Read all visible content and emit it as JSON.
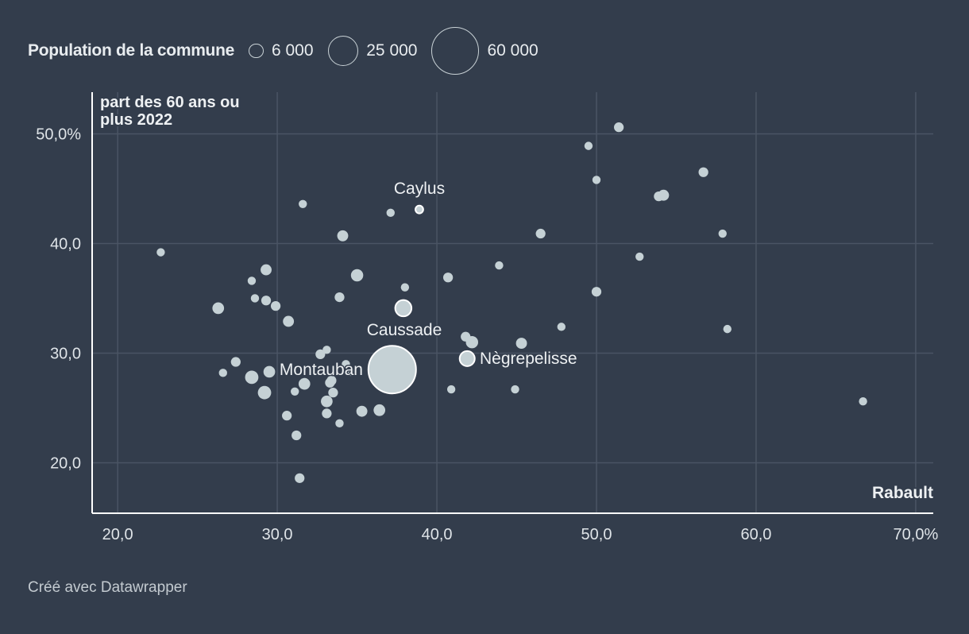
{
  "legend": {
    "title": "Population de la commune",
    "items": [
      {
        "label": "6 000",
        "value": 6000
      },
      {
        "label": "25 000",
        "value": 25000
      },
      {
        "label": "60 000",
        "value": 60000
      }
    ]
  },
  "chart_data": {
    "type": "scatter",
    "ylabel": "part des 60 ans ou plus 2022",
    "xlabel": "",
    "xlim": [
      18.4,
      71.1
    ],
    "ylim": [
      15.4,
      53.8
    ],
    "xticks": [
      {
        "v": 20,
        "label": "20,0"
      },
      {
        "v": 30,
        "label": "30,0"
      },
      {
        "v": 40,
        "label": "40,0"
      },
      {
        "v": 50,
        "label": "50,0"
      },
      {
        "v": 60,
        "label": "60,0"
      },
      {
        "v": 70,
        "label": "70,0%"
      }
    ],
    "yticks": [
      {
        "v": 20,
        "label": "20,0"
      },
      {
        "v": 30,
        "label": "30,0"
      },
      {
        "v": 40,
        "label": "40,0"
      },
      {
        "v": 50,
        "label": "50,0%"
      }
    ],
    "grid": true,
    "size_encoding": "population",
    "point_color": "#c5d1d5",
    "annotation": "Rabault",
    "labeled_points": [
      {
        "name": "Caylus",
        "x": 38.9,
        "y": 43.1,
        "pop": 1600
      },
      {
        "name": "Caussade",
        "x": 37.9,
        "y": 34.1,
        "pop": 7000
      },
      {
        "name": "Montauban",
        "x": 37.2,
        "y": 28.5,
        "pop": 60000
      },
      {
        "name": "Nègrepelisse",
        "x": 41.9,
        "y": 29.5,
        "pop": 6000
      }
    ],
    "points": [
      [
        22.7,
        39.2,
        1800
      ],
      [
        26.3,
        34.1,
        3600
      ],
      [
        26.6,
        28.2,
        1800
      ],
      [
        27.4,
        29.2,
        2500
      ],
      [
        28.4,
        27.8,
        4700
      ],
      [
        28.4,
        36.6,
        1800
      ],
      [
        28.6,
        35.0,
        1800
      ],
      [
        29.3,
        37.6,
        3200
      ],
      [
        29.3,
        34.8,
        2500
      ],
      [
        29.5,
        28.3,
        3600
      ],
      [
        29.9,
        34.3,
        2500
      ],
      [
        29.2,
        26.4,
        4700
      ],
      [
        30.7,
        32.9,
        3200
      ],
      [
        30.6,
        24.3,
        2500
      ],
      [
        31.1,
        26.5,
        1800
      ],
      [
        31.2,
        22.5,
        2500
      ],
      [
        31.4,
        18.6,
        2500
      ],
      [
        31.7,
        27.2,
        3600
      ],
      [
        31.6,
        43.6,
        1800
      ],
      [
        32.7,
        29.9,
        2500
      ],
      [
        33.1,
        30.3,
        1800
      ],
      [
        33.1,
        24.5,
        2500
      ],
      [
        33.1,
        25.6,
        3600
      ],
      [
        33.4,
        27.5,
        2500
      ],
      [
        33.3,
        27.3,
        2500
      ],
      [
        33.5,
        26.4,
        2500
      ],
      [
        33.9,
        23.6,
        1800
      ],
      [
        33.9,
        35.1,
        2500
      ],
      [
        34.1,
        40.7,
        3200
      ],
      [
        34.3,
        29.0,
        1800
      ],
      [
        34.6,
        28.3,
        1800
      ],
      [
        35.0,
        37.1,
        4000
      ],
      [
        35.3,
        24.7,
        3200
      ],
      [
        36.4,
        24.8,
        3600
      ],
      [
        37.1,
        42.8,
        1800
      ],
      [
        38.0,
        36.0,
        1800
      ],
      [
        40.7,
        36.9,
        2500
      ],
      [
        40.9,
        26.7,
        1800
      ],
      [
        41.8,
        31.5,
        2500
      ],
      [
        42.2,
        31.0,
        4000
      ],
      [
        43.9,
        38.0,
        1800
      ],
      [
        44.9,
        26.7,
        1800
      ],
      [
        45.3,
        30.9,
        3200
      ],
      [
        46.5,
        40.9,
        2500
      ],
      [
        47.8,
        32.4,
        1800
      ],
      [
        49.5,
        48.9,
        1800
      ],
      [
        50.0,
        45.8,
        1800
      ],
      [
        50.0,
        35.6,
        2500
      ],
      [
        51.4,
        50.6,
        2500
      ],
      [
        52.7,
        38.8,
        1800
      ],
      [
        53.9,
        44.3,
        2500
      ],
      [
        54.2,
        44.4,
        3200
      ],
      [
        56.7,
        46.5,
        2500
      ],
      [
        57.9,
        40.9,
        1800
      ],
      [
        58.2,
        32.2,
        1800
      ],
      [
        66.7,
        25.6,
        1800
      ]
    ]
  },
  "footer": "Créé avec Datawrapper"
}
